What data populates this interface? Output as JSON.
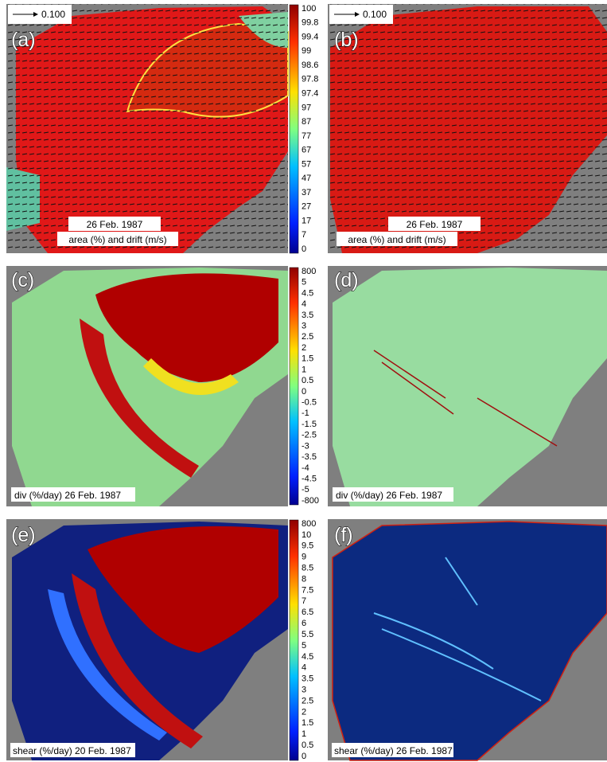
{
  "panels": [
    {
      "label": "(a)",
      "scale": "0.100",
      "date": "26 Feb. 1987",
      "caption": "area (%) and drift (m/s)"
    },
    {
      "label": "(b)",
      "scale": "0.100",
      "date": "26 Feb. 1987",
      "caption": "area (%) and drift (m/s)"
    },
    {
      "label": "(c)",
      "caption": "div (%/day) 26 Feb. 1987"
    },
    {
      "label": "(d)",
      "caption": "div (%/day) 26 Feb. 1987"
    },
    {
      "label": "(e)",
      "caption": "shear (%/day) 20 Feb. 1987"
    },
    {
      "label": "(f)",
      "caption": "shear (%/day) 26 Feb. 1987"
    }
  ],
  "colorbars": [
    {
      "ticks": [
        "100",
        "99.8",
        "99.4",
        "99",
        "98.6",
        "97.8",
        "97.4",
        "97",
        "87",
        "77",
        "67",
        "57",
        "47",
        "37",
        "27",
        "17",
        "7",
        "0"
      ]
    },
    {
      "ticks": [
        "800",
        "5",
        "4.5",
        "4",
        "3.5",
        "3",
        "2.5",
        "2",
        "1.5",
        "1",
        "0.5",
        "0",
        "-0.5",
        "-1",
        "-1.5",
        "-2.5",
        "-3",
        "-3.5",
        "-4",
        "-4.5",
        "-5",
        "-800"
      ]
    },
    {
      "ticks": [
        "800",
        "10",
        "9.5",
        "9",
        "8.5",
        "8",
        "7.5",
        "7",
        "6.5",
        "6",
        "5.5",
        "5",
        "4.5",
        "4",
        "3.5",
        "3",
        "2.5",
        "2",
        "1.5",
        "1",
        "0.5",
        "0"
      ]
    }
  ]
}
